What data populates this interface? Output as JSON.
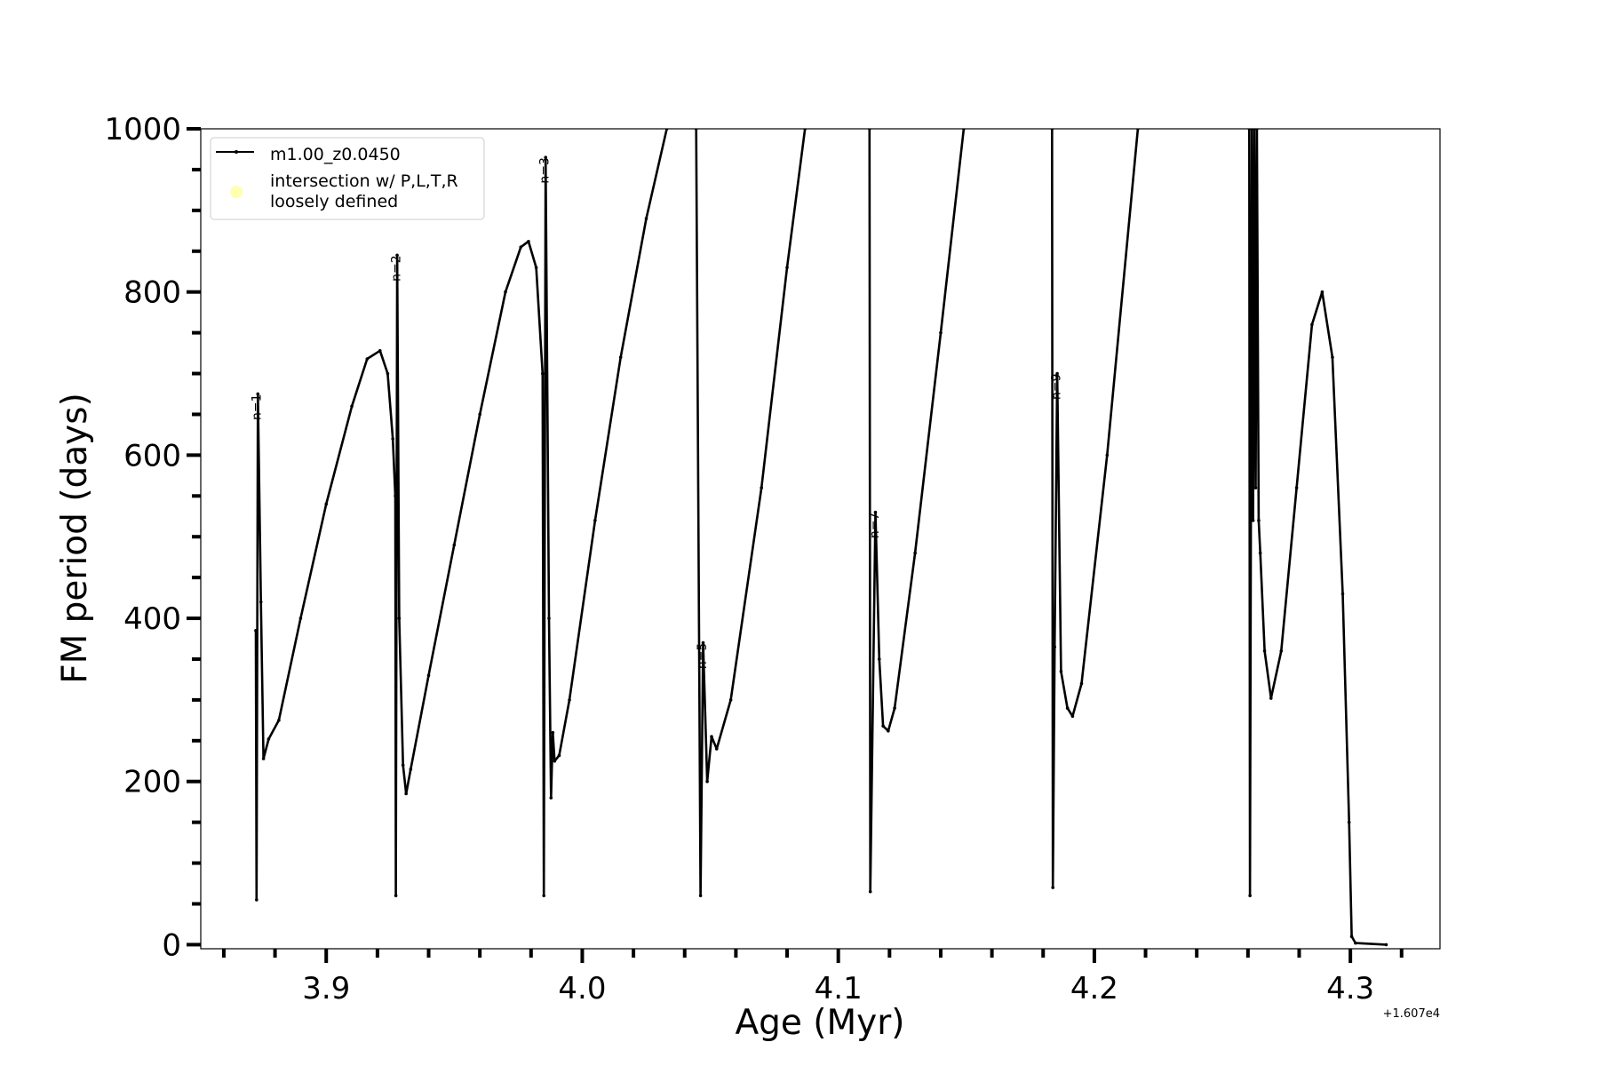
{
  "chart_data": {
    "type": "line",
    "title": "",
    "xlabel": "Age (Myr)",
    "ylabel": "FM period (days)",
    "x_offset_label": "+1.607e4",
    "xlim": [
      3.851,
      4.335
    ],
    "ylim": [
      -5,
      1000
    ],
    "x_ticks": [
      3.9,
      4.0,
      4.1,
      4.2,
      4.3
    ],
    "x_tick_labels": [
      "3.9",
      "4.0",
      "4.1",
      "4.2",
      "4.3"
    ],
    "y_ticks": [
      0,
      200,
      400,
      600,
      800,
      1000
    ],
    "y_tick_labels": [
      "0",
      "200",
      "400",
      "600",
      "800",
      "1000"
    ],
    "grid": false,
    "legend_position": "top-left",
    "legend": [
      {
        "label": "m1.00_z0.0450",
        "marker": "line-dot",
        "color": "#000000"
      },
      {
        "label": "intersection w/ P,L,T,R\nloosely defined",
        "marker": "circle",
        "color": "#ffffb0"
      }
    ],
    "series": [
      {
        "name": "m1.00_z0.0450",
        "color": "#000000",
        "points": [
          [
            3.8725,
            385
          ],
          [
            3.8728,
            55
          ],
          [
            3.8733,
            675
          ],
          [
            3.8745,
            420
          ],
          [
            3.8755,
            228
          ],
          [
            3.8775,
            252
          ],
          [
            3.8815,
            275
          ],
          [
            3.89,
            400
          ],
          [
            3.9,
            540
          ],
          [
            3.91,
            660
          ],
          [
            3.916,
            718
          ],
          [
            3.921,
            728
          ],
          [
            3.924,
            700
          ],
          [
            3.926,
            620
          ],
          [
            3.927,
            550
          ],
          [
            3.9272,
            60
          ],
          [
            3.9277,
            845
          ],
          [
            3.9285,
            400
          ],
          [
            3.93,
            220
          ],
          [
            3.9312,
            185
          ],
          [
            3.933,
            215
          ],
          [
            3.94,
            330
          ],
          [
            3.95,
            490
          ],
          [
            3.96,
            650
          ],
          [
            3.97,
            800
          ],
          [
            3.976,
            855
          ],
          [
            3.979,
            862
          ],
          [
            3.982,
            830
          ],
          [
            3.9845,
            700
          ],
          [
            3.985,
            60
          ],
          [
            3.9857,
            965
          ],
          [
            3.987,
            400
          ],
          [
            3.9878,
            180
          ],
          [
            3.9885,
            260
          ],
          [
            3.9892,
            225
          ],
          [
            3.991,
            232
          ],
          [
            3.995,
            300
          ],
          [
            4.005,
            520
          ],
          [
            4.015,
            720
          ],
          [
            4.025,
            890
          ],
          [
            4.033,
            1000
          ],
          [
            4.04,
            1100
          ],
          [
            4.0445,
            1000
          ],
          [
            4.0462,
            60
          ],
          [
            4.0472,
            370
          ],
          [
            4.0488,
            200
          ],
          [
            4.0505,
            255
          ],
          [
            4.0525,
            240
          ],
          [
            4.058,
            300
          ],
          [
            4.07,
            560
          ],
          [
            4.08,
            830
          ],
          [
            4.087,
            1000
          ],
          [
            4.1,
            1200
          ],
          [
            4.1122,
            1000
          ],
          [
            4.1125,
            65
          ],
          [
            4.1145,
            530
          ],
          [
            4.116,
            350
          ],
          [
            4.1175,
            268
          ],
          [
            4.1195,
            262
          ],
          [
            4.122,
            290
          ],
          [
            4.13,
            480
          ],
          [
            4.14,
            750
          ],
          [
            4.149,
            1000
          ],
          [
            4.165,
            1200
          ],
          [
            4.1835,
            1000
          ],
          [
            4.1838,
            70
          ],
          [
            4.1845,
            365
          ],
          [
            4.1855,
            700
          ],
          [
            4.187,
            335
          ],
          [
            4.1895,
            290
          ],
          [
            4.1915,
            280
          ],
          [
            4.195,
            320
          ],
          [
            4.205,
            600
          ],
          [
            4.217,
            1000
          ],
          [
            4.235,
            1200
          ],
          [
            4.2605,
            1000
          ],
          [
            4.2608,
            60
          ],
          [
            4.2615,
            1000
          ],
          [
            4.262,
            520
          ],
          [
            4.2625,
            1000
          ],
          [
            4.263,
            560
          ],
          [
            4.2635,
            1000
          ],
          [
            4.2642,
            520
          ],
          [
            4.2648,
            480
          ],
          [
            4.2665,
            360
          ],
          [
            4.269,
            302
          ],
          [
            4.273,
            360
          ],
          [
            4.279,
            560
          ],
          [
            4.285,
            760
          ],
          [
            4.289,
            800
          ],
          [
            4.293,
            720
          ],
          [
            4.297,
            430
          ],
          [
            4.2995,
            150
          ],
          [
            4.3005,
            10
          ],
          [
            4.302,
            2
          ],
          [
            4.314,
            0
          ]
        ]
      }
    ],
    "annotations": [
      {
        "text": "n=1",
        "x": 3.8738,
        "y": 675
      },
      {
        "text": "n=2",
        "x": 3.9282,
        "y": 845
      },
      {
        "text": "n=3",
        "x": 3.9862,
        "y": 965
      },
      {
        "text": "n=5",
        "x": 4.0478,
        "y": 370
      },
      {
        "text": "n=7",
        "x": 4.115,
        "y": 530
      },
      {
        "text": "n=9",
        "x": 4.186,
        "y": 700
      }
    ]
  }
}
